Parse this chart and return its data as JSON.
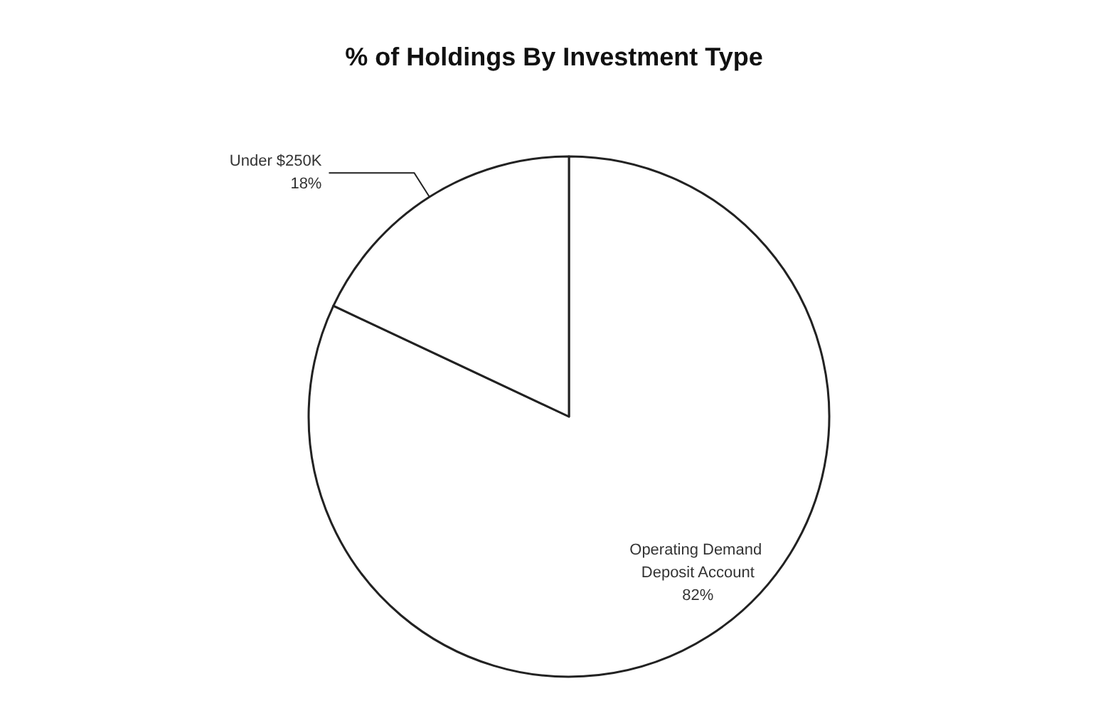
{
  "chart_data": {
    "type": "pie",
    "title": "% of Holdings By Investment Type",
    "categories": [
      "Operating Demand Deposit Account",
      "Under $250K"
    ],
    "values": [
      82,
      18
    ],
    "value_labels": [
      "82%",
      "18%"
    ],
    "colors": [
      "#ffffff",
      "#ffffff"
    ]
  }
}
